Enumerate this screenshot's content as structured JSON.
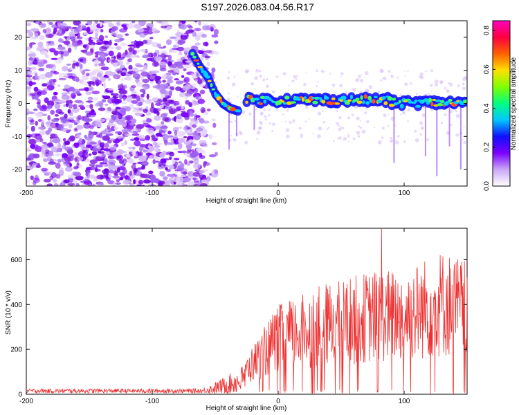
{
  "title": "S197.2026.083.04.56.R17",
  "chart_data": [
    {
      "type": "heatmap",
      "xlabel": "Height of straight line (km)",
      "ylabel": "Frequency (Hz)",
      "xlim": [
        -200,
        150
      ],
      "ylim": [
        -25,
        25
      ],
      "xticks": [
        -200,
        -100,
        0,
        100
      ],
      "yticks": [
        -20,
        -10,
        0,
        10,
        20
      ],
      "colorbar": {
        "label": "Normalized spectral amplitude",
        "range": [
          0,
          0.85
        ],
        "ticks": [
          "0.0",
          "0.2",
          "0.4",
          "0.6",
          "0.8"
        ],
        "colors": [
          "#ffffff",
          "#c9a7f7",
          "#7b00ff",
          "#1010ff",
          "#00c8ff",
          "#00ff80",
          "#80ff00",
          "#ffe000",
          "#ff6000",
          "#ff0040",
          "#ff00c0"
        ]
      },
      "noise_region": {
        "x_min": -200,
        "x_max": -57
      },
      "ridge": {
        "descent": [
          {
            "x": -68,
            "y": 15
          },
          {
            "x": -62,
            "y": 11
          },
          {
            "x": -56,
            "y": 8
          },
          {
            "x": -50,
            "y": 3
          },
          {
            "x": -44,
            "y": 0
          },
          {
            "x": -38,
            "y": -1.5
          },
          {
            "x": -30,
            "y": -2.5
          }
        ],
        "plateau": {
          "x_start": -25,
          "x_end": 150,
          "frequency": 1
        }
      }
    },
    {
      "type": "line",
      "xlabel": "Height of straight line (km)",
      "ylabel": "SNR (10 * v/v)",
      "xlim": [
        -200,
        150
      ],
      "ylim": [
        0,
        740
      ],
      "xticks": [
        -200,
        -100,
        0,
        100
      ],
      "yticks": [
        0,
        200,
        400,
        600
      ],
      "color": "#ee3030",
      "envelope": [
        {
          "x": -200,
          "y": 25
        },
        {
          "x": -60,
          "y": 25
        },
        {
          "x": -45,
          "y": 70
        },
        {
          "x": -30,
          "y": 120
        },
        {
          "x": -20,
          "y": 220
        },
        {
          "x": 0,
          "y": 400
        },
        {
          "x": 40,
          "y": 500
        },
        {
          "x": 80,
          "y": 560
        },
        {
          "x": 100,
          "y": 560
        },
        {
          "x": 130,
          "y": 650
        },
        {
          "x": 150,
          "y": 600
        }
      ],
      "peak": {
        "x": 82,
        "y": 740
      }
    }
  ]
}
